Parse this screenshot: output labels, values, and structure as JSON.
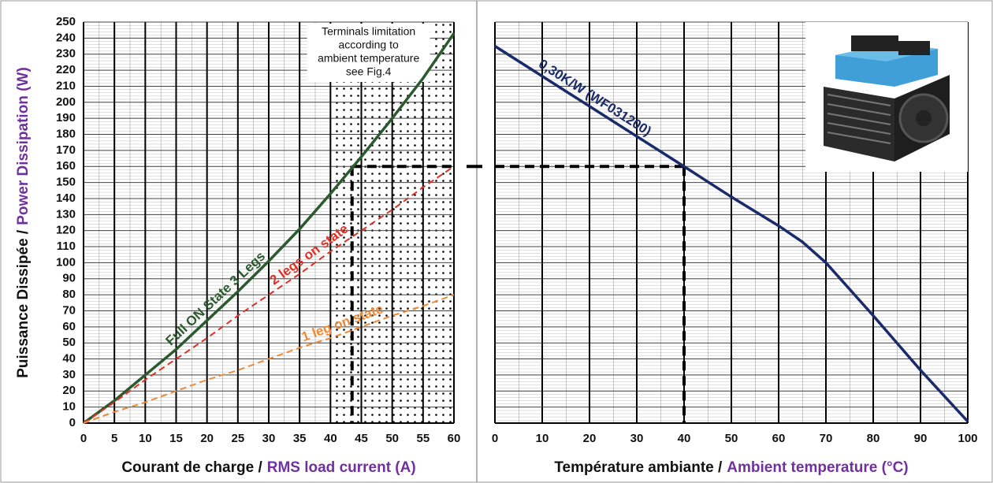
{
  "chart_data": [
    {
      "type": "line",
      "ylabel_fr": "Puissance Dissipée  /",
      "ylabel_en": "Power Dissipation (W)",
      "xlabel_fr": "Courant de charge /",
      "xlabel_en": "RMS load current (A)",
      "x": [
        0,
        5,
        10,
        15,
        20,
        25,
        30,
        35,
        40,
        45,
        50,
        55,
        60
      ],
      "series": [
        {
          "name": "Full ON State 3 Legs",
          "color": "#2b5a2e",
          "dashed": false,
          "values": [
            0,
            14,
            30,
            46,
            64,
            82,
            101,
            121,
            143,
            166,
            190,
            215,
            243
          ]
        },
        {
          "name": "2 legs on state",
          "color": "#e03025",
          "dashed": true,
          "values": [
            0,
            13,
            27,
            40,
            53,
            67,
            80,
            93,
            107,
            120,
            133,
            147,
            160
          ]
        },
        {
          "name": "1 leg on state",
          "color": "#ee8a35",
          "dashed": true,
          "values": [
            0,
            7,
            13,
            20,
            27,
            33,
            40,
            47,
            53,
            60,
            67,
            73,
            80
          ]
        }
      ],
      "annotation": [
        "Terminals limitation",
        "according to",
        "ambient temperature",
        "see Fig.4"
      ],
      "shaded_xrange": [
        40,
        60
      ],
      "reference": {
        "x": 43.5,
        "y": 160
      },
      "xlim": [
        0,
        60
      ],
      "xticks": [
        0,
        5,
        10,
        15,
        20,
        25,
        30,
        35,
        40,
        45,
        50,
        55,
        60
      ],
      "ylim": [
        0,
        250
      ],
      "yticks": [
        0,
        10,
        20,
        30,
        40,
        50,
        60,
        70,
        80,
        90,
        100,
        110,
        120,
        130,
        140,
        150,
        160,
        170,
        180,
        190,
        200,
        210,
        220,
        230,
        240,
        250
      ],
      "ytick_labels": true,
      "grid": true
    },
    {
      "type": "line",
      "xlabel_fr": "Température ambiante /",
      "xlabel_en": "Ambient temperature (°C)",
      "x": [
        0,
        40,
        50,
        60,
        65,
        70,
        80,
        90,
        100
      ],
      "series": [
        {
          "name": "0,30K/W (WF031200)",
          "color": "#1b2a6b",
          "dashed": false,
          "values": [
            235,
            160,
            141,
            123,
            113,
            100,
            67,
            33,
            1
          ]
        }
      ],
      "reference": {
        "x": 40,
        "y": 160
      },
      "xlim": [
        0,
        100
      ],
      "xticks": [
        0,
        10,
        20,
        30,
        40,
        50,
        60,
        70,
        80,
        90,
        100
      ],
      "ylim": [
        0,
        250
      ],
      "yticks": [
        0,
        10,
        20,
        30,
        40,
        50,
        60,
        70,
        80,
        90,
        100,
        110,
        120,
        130,
        140,
        150,
        160,
        170,
        180,
        190,
        200,
        210,
        220,
        230,
        240,
        250
      ],
      "ytick_labels": false,
      "grid": true
    }
  ]
}
